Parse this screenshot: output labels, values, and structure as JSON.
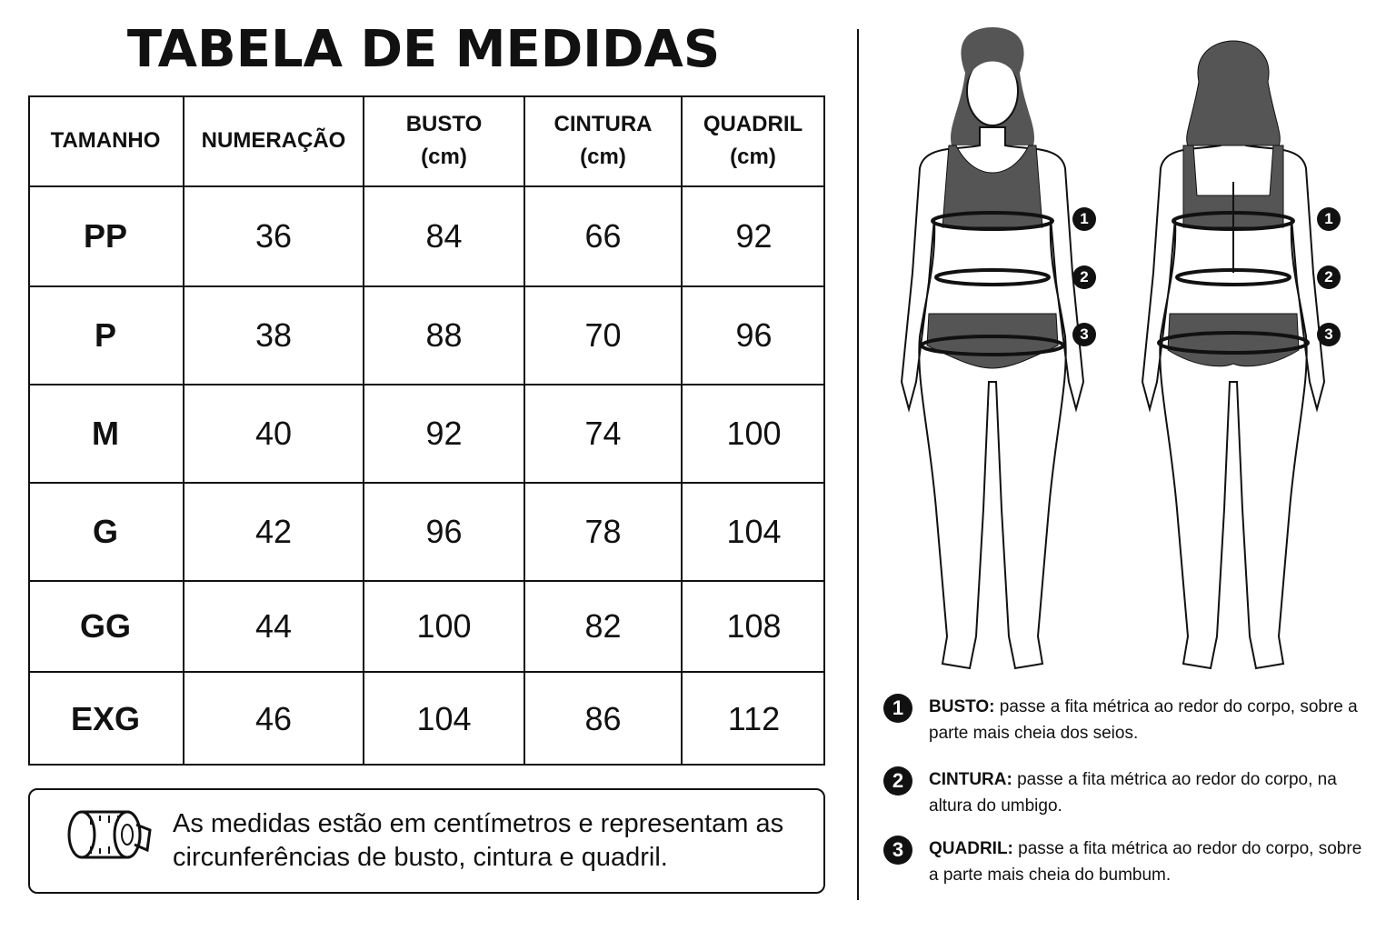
{
  "title": "TABELA DE MEDIDAS",
  "table": {
    "headers": [
      [
        "TAMANHO"
      ],
      [
        "NUMERAÇÃO"
      ],
      [
        "BUSTO",
        "(cm)"
      ],
      [
        "CINTURA",
        "(cm)"
      ],
      [
        "QUADRIL",
        "(cm)"
      ]
    ],
    "rows": [
      [
        "PP",
        36,
        84,
        66,
        92
      ],
      [
        "P",
        38,
        88,
        70,
        96
      ],
      [
        "M",
        40,
        92,
        74,
        100
      ],
      [
        "G",
        42,
        96,
        78,
        104
      ],
      [
        "GG",
        44,
        100,
        82,
        108
      ],
      [
        "EXG",
        46,
        104,
        86,
        112
      ]
    ]
  },
  "note": "As medidas estão em centímetros e representam as circunferências de busto, cintura e quadril.",
  "instructions": [
    {
      "number": "1",
      "label": "BUSTO:",
      "text": "passe a fita métrica ao redor do corpo, sobre a parte mais cheia dos seios."
    },
    {
      "number": "2",
      "label": "CINTURA:",
      "text": "passe a fita métrica ao redor do corpo, na altura do umbigo."
    },
    {
      "number": "3",
      "label": "QUADRIL:",
      "text": "passe a fita métrica ao redor do corpo, sobre a parte mais cheia do bumbum."
    }
  ]
}
